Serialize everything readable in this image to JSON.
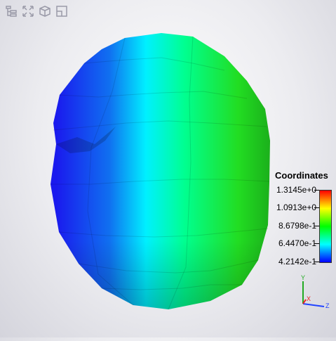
{
  "toolbar": {
    "buttons": [
      {
        "name": "tree-view-icon"
      },
      {
        "name": "fit-view-icon"
      },
      {
        "name": "cube-view-icon"
      },
      {
        "name": "window-layout-icon"
      }
    ]
  },
  "legend": {
    "title": "Coordinates",
    "labels": [
      "1.3145e+0",
      "1.0913e+0",
      "8.6798e-1",
      "6.4470e-1",
      "4.2142e-1"
    ]
  },
  "triad": {
    "x": "X",
    "y": "Y",
    "z": "Z"
  },
  "colors": {
    "blue": "#0000ff",
    "cyan": "#00ffff",
    "green": "#00ff00",
    "yellow": "#ffff00",
    "red": "#ff0000",
    "icon": "#9a9aa8"
  }
}
